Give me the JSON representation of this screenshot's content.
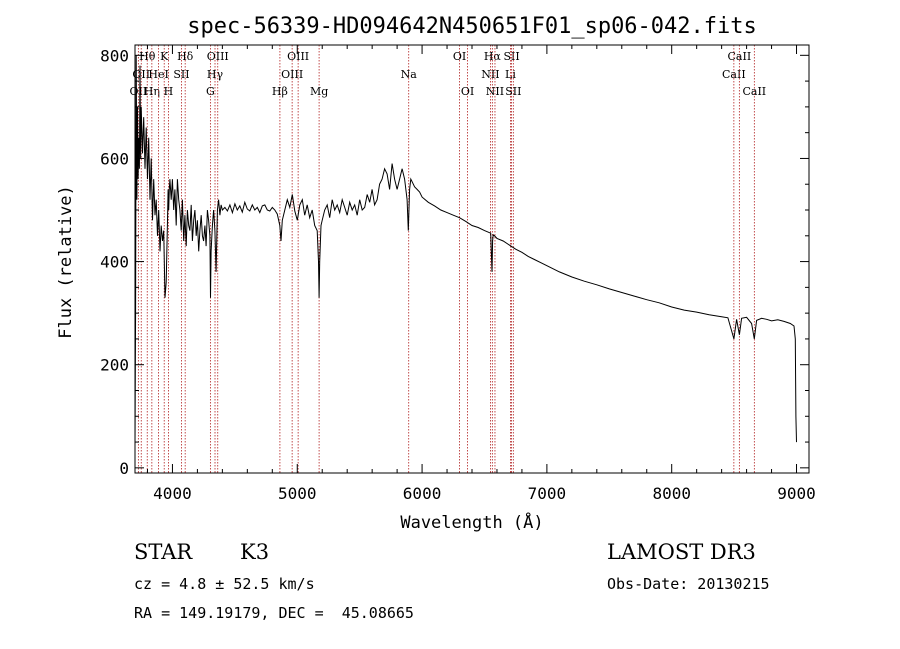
{
  "chart_data": {
    "type": "line",
    "title": "spec-56339-HD094642N450651F01_sp06-042.fits",
    "xlabel": "Wavelength (Å)",
    "ylabel": "Flux (relative)",
    "xlim": [
      3700,
      9100
    ],
    "ylim": [
      -10,
      820
    ],
    "xticks": [
      4000,
      5000,
      6000,
      7000,
      8000,
      9000
    ],
    "yticks": [
      0,
      200,
      400,
      600,
      800
    ],
    "grid": false,
    "series": [
      {
        "x": [
          3700,
          3705,
          3710,
          3715,
          3720,
          3725,
          3730,
          3735,
          3740,
          3745,
          3750,
          3760,
          3770,
          3780,
          3790,
          3800,
          3810,
          3820,
          3830,
          3840,
          3850,
          3860,
          3870,
          3880,
          3890,
          3900,
          3910,
          3920,
          3930,
          3935,
          3940,
          3950,
          3960,
          3965,
          3970,
          3975,
          3980,
          3990,
          4000,
          4010,
          4020,
          4030,
          4040,
          4050,
          4060,
          4070,
          4080,
          4090,
          4100,
          4110,
          4120,
          4130,
          4140,
          4150,
          4160,
          4170,
          4180,
          4190,
          4200,
          4210,
          4220,
          4230,
          4240,
          4250,
          4260,
          4270,
          4280,
          4290,
          4300,
          4305,
          4310,
          4320,
          4330,
          4340,
          4350,
          4360,
          4370,
          4380,
          4390,
          4400,
          4420,
          4440,
          4460,
          4480,
          4500,
          4520,
          4540,
          4560,
          4580,
          4600,
          4620,
          4640,
          4660,
          4680,
          4700,
          4720,
          4740,
          4760,
          4780,
          4800,
          4820,
          4840,
          4860,
          4870,
          4880,
          4900,
          4920,
          4940,
          4960,
          4980,
          5000,
          5020,
          5040,
          5060,
          5080,
          5100,
          5120,
          5140,
          5160,
          5170,
          5175,
          5180,
          5190,
          5200,
          5220,
          5240,
          5260,
          5280,
          5300,
          5320,
          5340,
          5360,
          5380,
          5400,
          5420,
          5440,
          5460,
          5480,
          5500,
          5520,
          5540,
          5560,
          5580,
          5600,
          5620,
          5640,
          5660,
          5680,
          5700,
          5720,
          5740,
          5760,
          5780,
          5800,
          5820,
          5840,
          5860,
          5880,
          5890,
          5900,
          5910,
          5920,
          5940,
          5960,
          5980,
          6000,
          6050,
          6100,
          6150,
          6200,
          6250,
          6300,
          6350,
          6400,
          6450,
          6500,
          6550,
          6560,
          6565,
          6570,
          6580,
          6600,
          6650,
          6700,
          6750,
          6800,
          6850,
          6900,
          6950,
          7000,
          7100,
          7200,
          7300,
          7400,
          7500,
          7600,
          7700,
          7800,
          7900,
          8000,
          8100,
          8200,
          8300,
          8400,
          8450,
          8498,
          8520,
          8542,
          8560,
          8600,
          8640,
          8662,
          8680,
          8720,
          8760,
          8800,
          8850,
          8900,
          8950,
          8980,
          8990,
          8995,
          9000
        ],
        "y": [
          40,
          310,
          800,
          520,
          700,
          560,
          640,
          580,
          780,
          600,
          700,
          610,
          680,
          580,
          660,
          560,
          640,
          520,
          600,
          480,
          560,
          490,
          520,
          450,
          500,
          420,
          470,
          440,
          460,
          400,
          330,
          360,
          480,
          540,
          500,
          540,
          560,
          520,
          560,
          500,
          540,
          470,
          560,
          520,
          500,
          460,
          520,
          440,
          490,
          430,
          500,
          470,
          460,
          510,
          440,
          480,
          500,
          450,
          480,
          420,
          460,
          490,
          450,
          440,
          470,
          430,
          500,
          480,
          450,
          330,
          420,
          470,
          500,
          460,
          380,
          500,
          520,
          490,
          510,
          500,
          505,
          498,
          510,
          495,
          512,
          500,
          508,
          496,
          515,
          502,
          498,
          510,
          500,
          505,
          495,
          508,
          510,
          500,
          498,
          505,
          500,
          492,
          470,
          440,
          480,
          500,
          520,
          505,
          530,
          498,
          480,
          510,
          520,
          490,
          510,
          485,
          500,
          470,
          460,
          400,
          330,
          400,
          470,
          480,
          500,
          510,
          485,
          520,
          500,
          510,
          495,
          520,
          505,
          490,
          515,
          500,
          510,
          490,
          520,
          500,
          505,
          530,
          515,
          540,
          510,
          520,
          550,
          560,
          580,
          570,
          540,
          590,
          560,
          540,
          560,
          580,
          560,
          520,
          460,
          540,
          560,
          555,
          545,
          540,
          535,
          525,
          515,
          508,
          500,
          495,
          490,
          485,
          478,
          470,
          466,
          460,
          455,
          380,
          440,
          452,
          450,
          445,
          440,
          432,
          424,
          418,
          410,
          404,
          398,
          392,
          380,
          370,
          362,
          355,
          347,
          340,
          333,
          326,
          320,
          312,
          306,
          302,
          297,
          293,
          291,
          250,
          288,
          258,
          290,
          292,
          280,
          250,
          286,
          290,
          288,
          285,
          287,
          284,
          280,
          275,
          250,
          100,
          50
        ]
      }
    ],
    "line_markers": [
      {
        "wavelength": 3727,
        "label": "OII",
        "row": 2
      },
      {
        "wavelength": 3750,
        "label": "OII",
        "row": 1
      },
      {
        "wavelength": 3798,
        "label": "Hθ",
        "row": 0
      },
      {
        "wavelength": 3835,
        "label": "Hη",
        "row": 2
      },
      {
        "wavelength": 3889,
        "label": "HeI",
        "row": 1
      },
      {
        "wavelength": 3934,
        "label": "K",
        "row": 0
      },
      {
        "wavelength": 3968,
        "label": "H",
        "row": 2
      },
      {
        "wavelength": 4072,
        "label": "SII",
        "row": 1
      },
      {
        "wavelength": 4102,
        "label": "Hδ",
        "row": 0
      },
      {
        "wavelength": 4304,
        "label": "G",
        "row": 2
      },
      {
        "wavelength": 4341,
        "label": "Hγ",
        "row": 1
      },
      {
        "wavelength": 4363,
        "label": "OIII",
        "row": 0
      },
      {
        "wavelength": 4861,
        "label": "Hβ",
        "row": 2
      },
      {
        "wavelength": 4959,
        "label": "OIII",
        "row": 1
      },
      {
        "wavelength": 5007,
        "label": "OIII",
        "row": 0
      },
      {
        "wavelength": 5175,
        "label": "Mg",
        "row": 2
      },
      {
        "wavelength": 5893,
        "label": "Na",
        "row": 1
      },
      {
        "wavelength": 6300,
        "label": "OI",
        "row": 0
      },
      {
        "wavelength": 6364,
        "label": "OI",
        "row": 2
      },
      {
        "wavelength": 6548,
        "label": "NII",
        "row": 1
      },
      {
        "wavelength": 6563,
        "label": "Hα",
        "row": 0
      },
      {
        "wavelength": 6584,
        "label": "NII",
        "row": 2
      },
      {
        "wavelength": 6708,
        "label": "Li",
        "row": 1
      },
      {
        "wavelength": 6717,
        "label": "SII",
        "row": 0
      },
      {
        "wavelength": 6731,
        "label": "SII",
        "row": 2
      },
      {
        "wavelength": 8498,
        "label": "CaII",
        "row": 1
      },
      {
        "wavelength": 8542,
        "label": "CaII",
        "row": 0
      },
      {
        "wavelength": 8662,
        "label": "CaII",
        "row": 2
      }
    ],
    "colors": {
      "spectrum": "#000000",
      "marker": "#b22222",
      "axes": "#000000"
    }
  },
  "info": {
    "object_class": "STAR",
    "subclass": "K3",
    "survey": "LAMOST DR3",
    "redshift": "cz = 4.8 ± 52.5 km/s",
    "obs_date": "Obs-Date: 20130215",
    "coords": "RA = 149.19179, DEC =  45.08665"
  }
}
